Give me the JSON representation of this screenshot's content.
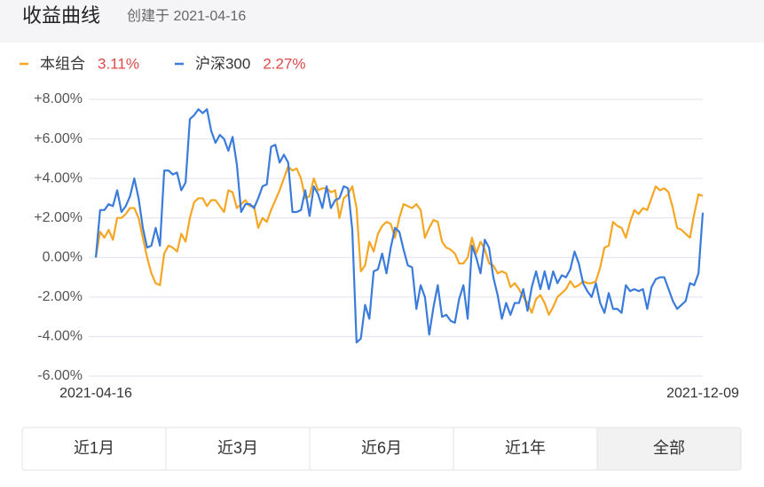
{
  "header": {
    "title": "收益曲线",
    "subtitle": "创建于 2021-04-16"
  },
  "chart_data": {
    "type": "line",
    "categories": [
      "2021-04-16",
      null,
      null,
      null,
      null,
      null,
      null,
      null,
      null,
      null,
      null,
      null,
      null,
      null,
      null,
      null,
      null,
      null,
      null,
      null,
      null,
      null,
      null,
      null,
      null,
      null,
      null,
      null,
      null,
      null,
      null,
      null,
      null,
      null,
      null,
      null,
      null,
      null,
      null,
      null,
      null,
      null,
      null,
      null,
      null,
      null,
      null,
      null,
      null,
      null,
      null,
      null,
      null,
      null,
      null,
      null,
      null,
      null,
      null,
      null,
      null,
      null,
      null,
      null,
      null,
      null,
      null,
      null,
      null,
      null,
      null,
      null,
      null,
      null,
      null,
      null,
      null,
      null,
      null,
      null,
      null,
      null,
      null,
      null,
      null,
      null,
      null,
      null,
      null,
      null,
      null,
      null,
      null,
      null,
      null,
      null,
      null,
      null,
      null,
      null,
      null,
      null,
      null,
      null,
      null,
      null,
      null,
      null,
      null,
      null,
      null,
      null,
      null,
      null,
      null,
      null,
      null,
      null,
      null,
      null,
      null,
      null,
      null,
      null,
      null,
      null,
      null,
      null,
      null,
      null,
      null,
      null,
      null,
      null,
      null,
      null,
      null,
      null,
      null,
      null,
      null,
      null,
      "2021-12-09"
    ],
    "series": [
      {
        "name": "本组合",
        "return": "3.11%",
        "color": "#f5a623",
        "values": [
          0,
          1.3,
          1.0,
          1.4,
          0.9,
          2.0,
          2.0,
          2.2,
          2.5,
          2.5,
          2.0,
          1.0,
          0,
          -0.8,
          -1.3,
          -1.4,
          0.2,
          0.6,
          0.5,
          0.3,
          1.2,
          0.8,
          2.0,
          2.8,
          3.0,
          3.0,
          2.6,
          2.9,
          2.9,
          2.6,
          2.3,
          3.4,
          3.3,
          2.5,
          2.7,
          2.9,
          2.6,
          2.6,
          1.5,
          2.0,
          1.8,
          2.4,
          2.9,
          3.4,
          4.0,
          4.6,
          4.4,
          4.5,
          4.0,
          3.0,
          3.1,
          4.0,
          3.4,
          3.5,
          3.5,
          3.3,
          3.4,
          2.0,
          3.0,
          3.2,
          3.6,
          2.5,
          -0.7,
          -0.4,
          0.8,
          0.3,
          1.2,
          1.6,
          1.8,
          1.7,
          1.0,
          2.0,
          2.7,
          2.6,
          2.5,
          2.7,
          2.4,
          1.0,
          1.5,
          1.9,
          1.8,
          0.8,
          0.5,
          0.4,
          0.2,
          -0.3,
          -0.3,
          0,
          1.0,
          0.2,
          0.8,
          0.4,
          -0.3,
          -0.4,
          -0.8,
          -0.7,
          -0.8,
          -1.5,
          -1.3,
          -1.6,
          -2.0,
          -2.3,
          -2.8,
          -2.1,
          -1.9,
          -2.3,
          -2.9,
          -2.5,
          -2.0,
          -1.8,
          -1.6,
          -1.2,
          -1.5,
          -1.4,
          -1.2,
          -1.3,
          -1.3,
          -1.2,
          -0.5,
          0.5,
          0.6,
          1.8,
          1.6,
          1.5,
          1.0,
          1.8,
          2.4,
          2.2,
          2.5,
          2.4,
          3.0,
          3.6,
          3.4,
          3.5,
          3.3,
          2.5,
          1.5,
          1.4,
          1.2,
          1.0,
          2.2,
          3.2,
          3.11
        ]
      },
      {
        "name": "沪深300",
        "return": "2.27%",
        "color": "#3a7bdc",
        "values": [
          0,
          2.4,
          2.4,
          2.7,
          2.6,
          3.4,
          2.3,
          2.6,
          3.1,
          4.0,
          3.0,
          1.5,
          0.5,
          0.6,
          1.5,
          0.6,
          4.4,
          4.4,
          4.2,
          4.3,
          3.4,
          3.8,
          7.0,
          7.2,
          7.5,
          7.3,
          7.5,
          6.4,
          5.8,
          6.2,
          6.0,
          5.4,
          6.1,
          4.7,
          2.3,
          2.7,
          2.7,
          2.5,
          3.0,
          3.6,
          3.7,
          5.6,
          5.7,
          4.8,
          5.2,
          4.8,
          2.3,
          2.3,
          2.4,
          3.4,
          2.1,
          3.6,
          3.2,
          2.5,
          3.6,
          2.5,
          2.9,
          3.0,
          3.6,
          3.5,
          1.4,
          -4.3,
          -4.1,
          -2.4,
          -3.1,
          -0.7,
          -0.6,
          0.2,
          -0.8,
          0.5,
          1.5,
          1.3,
          0.4,
          -0.4,
          -0.5,
          -2.6,
          -1.4,
          -2.0,
          -3.9,
          -2.5,
          -1.4,
          -3.0,
          -2.9,
          -3.2,
          -3.3,
          -2.1,
          -1.4,
          -3.1,
          0.6,
          0,
          -0.8,
          0.9,
          0.5,
          -1.0,
          -1.9,
          -3.1,
          -2.3,
          -2.9,
          -2.3,
          -2.3,
          -1.6,
          -2.7,
          -1.5,
          -0.7,
          -1.6,
          -0.7,
          -1.6,
          -0.7,
          -1.3,
          -0.9,
          -1.0,
          -0.6,
          0.3,
          -0.3,
          -1.3,
          -1.7,
          -2.0,
          -1.3,
          -2.3,
          -2.8,
          -1.8,
          -2.6,
          -2.6,
          -2.8,
          -1.4,
          -1.7,
          -1.6,
          -1.7,
          -1.6,
          -2.6,
          -1.5,
          -1.1,
          -1.0,
          -1.0,
          -1.6,
          -2.2,
          -2.6,
          -2.4,
          -2.2,
          -1.3,
          -1.4,
          -0.8,
          2.27
        ]
      }
    ],
    "ylim": [
      -6,
      8
    ],
    "yticks": [
      {
        "value": -6,
        "label": "-6.00%"
      },
      {
        "value": -4,
        "label": "-4.00%"
      },
      {
        "value": -2,
        "label": "-2.00%"
      },
      {
        "value": 0,
        "label": "0.00%"
      },
      {
        "value": 2,
        "label": "+2.00%"
      },
      {
        "value": 4,
        "label": "+4.00%"
      },
      {
        "value": 6,
        "label": "+6.00%"
      },
      {
        "value": 8,
        "label": "+8.00%"
      }
    ],
    "grid": true
  },
  "tabs": {
    "items": [
      "近1月",
      "近3月",
      "近6月",
      "近1年",
      "全部"
    ],
    "selected": 4
  }
}
